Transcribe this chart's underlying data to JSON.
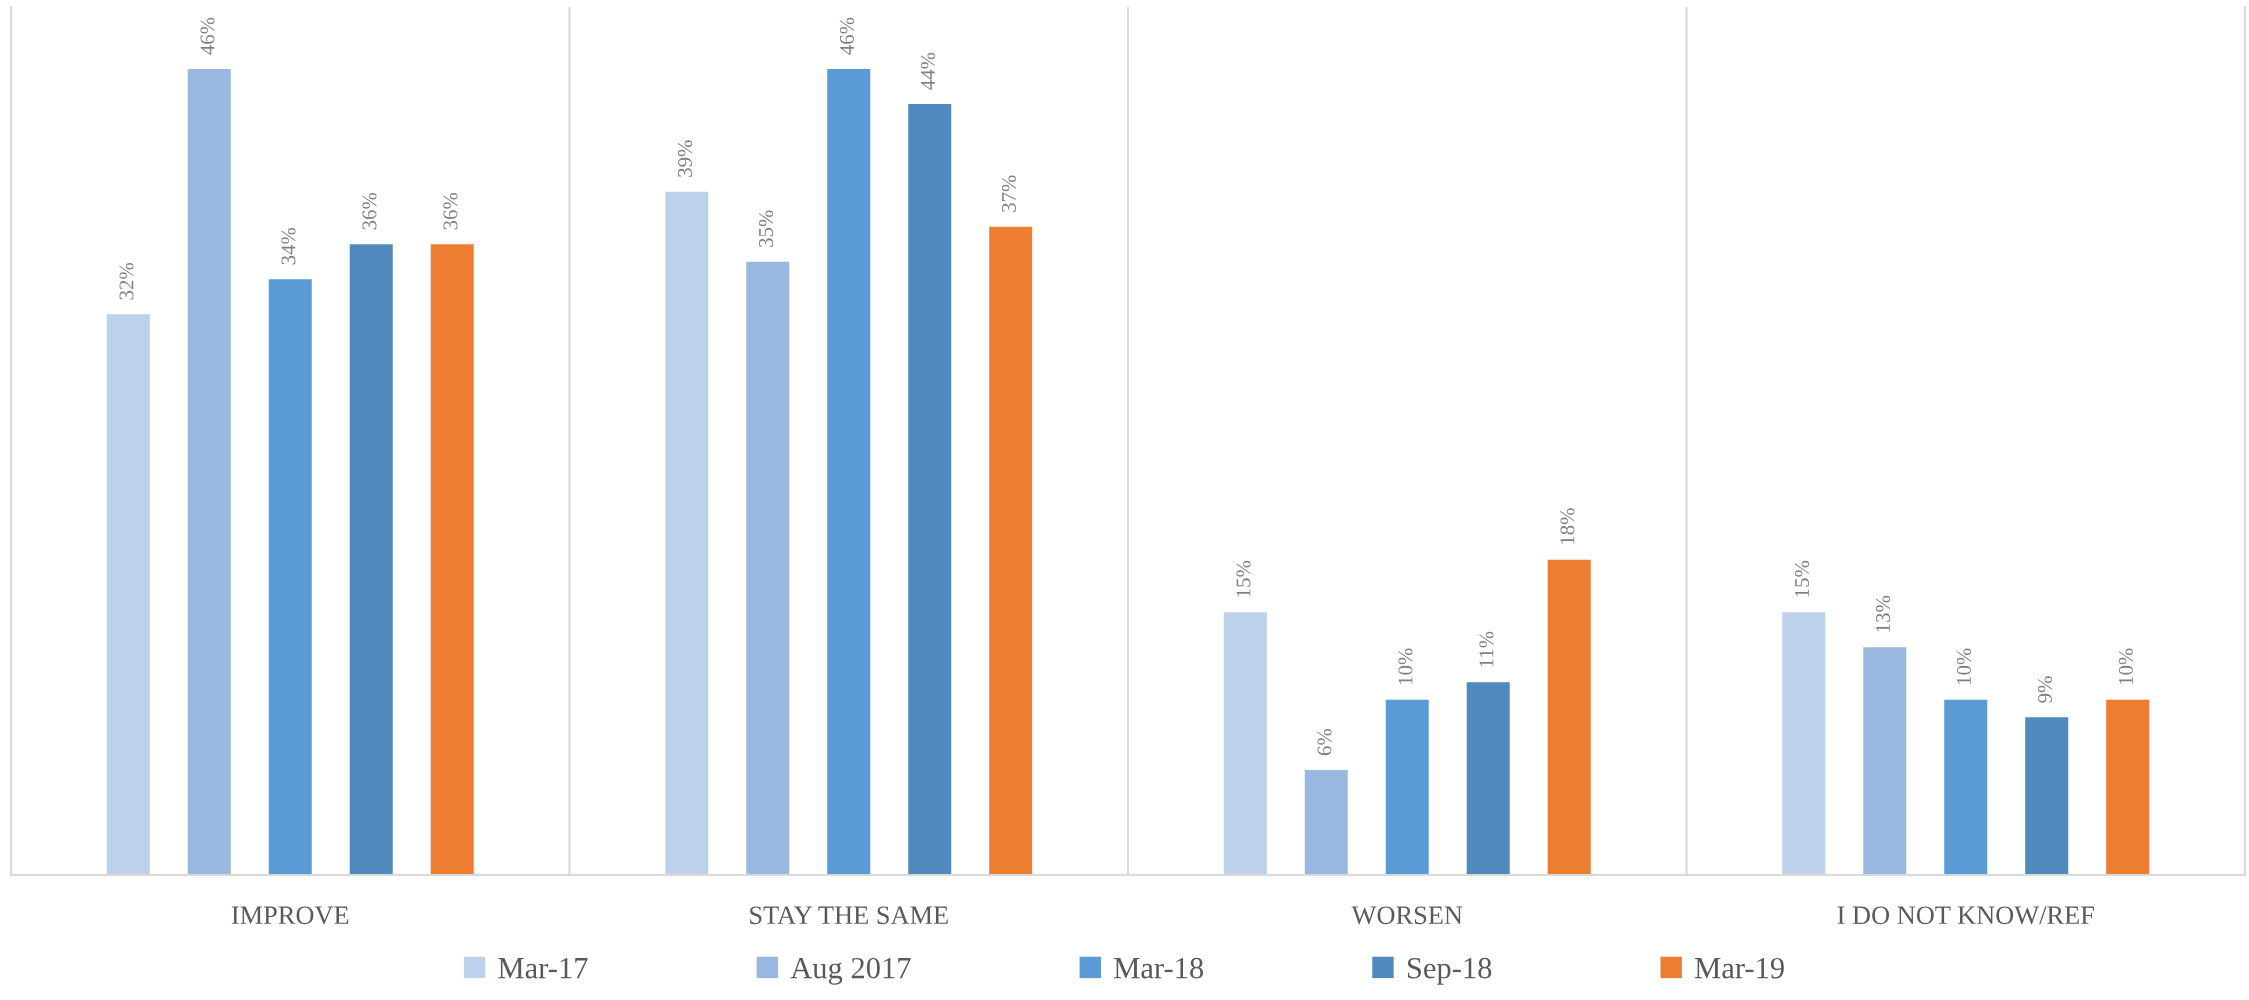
{
  "chart_data": {
    "type": "bar",
    "categories": [
      "IMPROVE",
      "STAY THE SAME",
      "WORSEN",
      "I DO NOT KNOW/REF"
    ],
    "series": [
      {
        "name": "Mar-17",
        "color": "#bdd1ea",
        "values": [
          32,
          39,
          15,
          15
        ],
        "value_labels": [
          "32%",
          "39%",
          "15%",
          "15%"
        ]
      },
      {
        "name": "Aug 2017",
        "color": "#98b8e0",
        "values": [
          46,
          35,
          6,
          13
        ],
        "value_labels": [
          "46%",
          "35%",
          "6%",
          "13%"
        ]
      },
      {
        "name": "Mar-18",
        "color": "#5b9bd5",
        "values": [
          34,
          46,
          10,
          10
        ],
        "value_labels": [
          "34%",
          "46%",
          "10%",
          "10%"
        ]
      },
      {
        "name": "Sep-18",
        "color": "#4f89bd",
        "values": [
          36,
          44,
          11,
          9
        ],
        "value_labels": [
          "36%",
          "44%",
          "11%",
          "9%"
        ]
      },
      {
        "name": "Mar-19",
        "color": "#ed7d31",
        "values": [
          36,
          37,
          18,
          10
        ],
        "value_labels": [
          "36%",
          "37%",
          "18%",
          "10%"
        ]
      }
    ],
    "legend": "bottom",
    "grid": "x",
    "tick_labels": "x"
  }
}
